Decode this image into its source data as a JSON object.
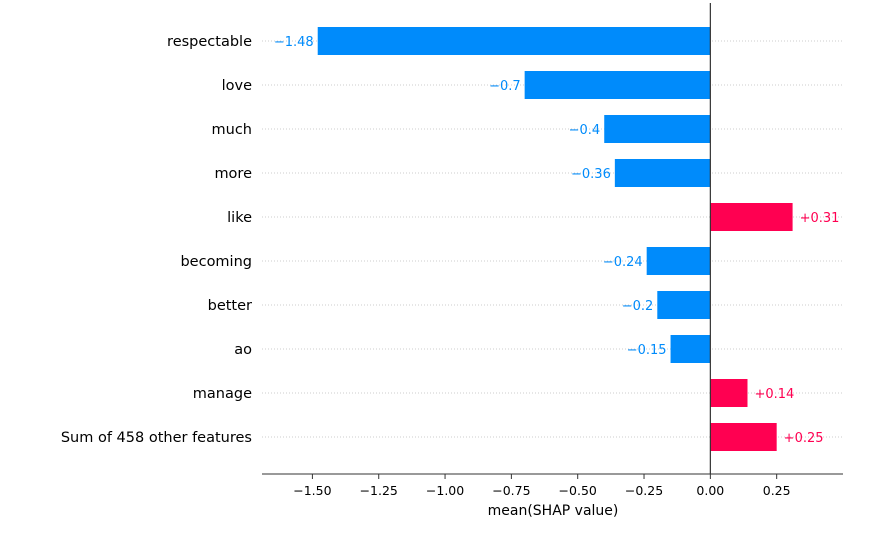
{
  "colors": {
    "negative": "#008bfb",
    "positive": "#ff0051",
    "axis": "#333333",
    "grid": "#cccccc"
  },
  "chart_data": {
    "type": "bar",
    "orientation": "horizontal",
    "categories": [
      "respectable",
      "love",
      "much",
      "more",
      "like",
      "becoming",
      "better",
      "ao",
      "manage",
      "Sum of 458 other features"
    ],
    "values": [
      -1.48,
      -0.7,
      -0.4,
      -0.36,
      0.31,
      -0.24,
      -0.2,
      -0.15,
      0.14,
      0.25
    ],
    "value_labels": [
      "−1.48",
      "−0.7",
      "−0.4",
      "−0.36",
      "+0.31",
      "−0.24",
      "−0.2",
      "−0.15",
      "+0.14",
      "+0.25"
    ],
    "xlabel": "mean(SHAP value)",
    "ylabel": "",
    "xlim": [
      -1.69,
      0.5
    ],
    "xticks": [
      -1.5,
      -1.25,
      -1.0,
      -0.75,
      -0.5,
      -0.25,
      0.0,
      0.25
    ],
    "xtick_labels": [
      "−1.50",
      "−1.25",
      "−1.00",
      "−0.75",
      "−0.50",
      "−0.25",
      "0.00",
      "0.25"
    ],
    "grid": "horizontal dotted lines per feature",
    "zero_line": true
  }
}
